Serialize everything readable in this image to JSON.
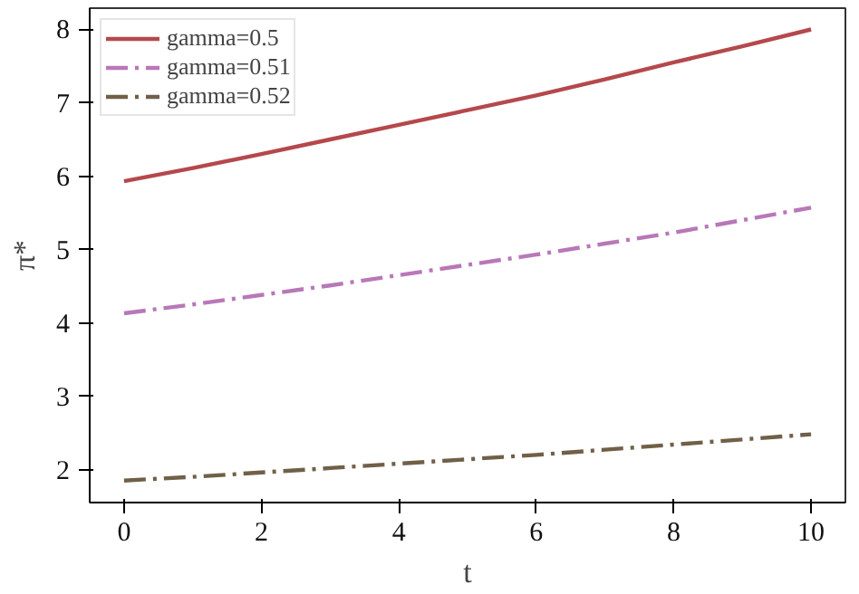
{
  "chart_data": {
    "type": "line",
    "xlabel": "t",
    "ylabel": "π*",
    "x": [
      0,
      1,
      2,
      3,
      4,
      5,
      6,
      7,
      8,
      9,
      10
    ],
    "xlim": [
      -0.5,
      10.5
    ],
    "ylim": [
      1.55,
      8.29
    ],
    "xticks": [
      0,
      2,
      4,
      6,
      8,
      10
    ],
    "yticks": [
      2,
      3,
      4,
      5,
      6,
      7,
      8
    ],
    "grid": false,
    "legend": "top left",
    "marker": "none",
    "series": [
      {
        "name": "gamma=0.5",
        "color": "#b5484c",
        "line_style": "solid",
        "values": [
          5.93,
          6.11,
          6.3,
          6.5,
          6.7,
          6.9,
          7.1,
          7.32,
          7.55,
          7.77,
          8.0
        ]
      },
      {
        "name": "gamma=0.51",
        "color": "#b878b8",
        "line_style": "dashdot",
        "values": [
          4.13,
          4.25,
          4.38,
          4.51,
          4.65,
          4.79,
          4.93,
          5.08,
          5.23,
          5.4,
          5.57
        ]
      },
      {
        "name": "gamma=0.52",
        "color": "#706048",
        "line_style": "dashdot",
        "values": [
          1.85,
          1.9,
          1.96,
          2.02,
          2.08,
          2.14,
          2.2,
          2.27,
          2.34,
          2.41,
          2.48
        ]
      }
    ]
  }
}
